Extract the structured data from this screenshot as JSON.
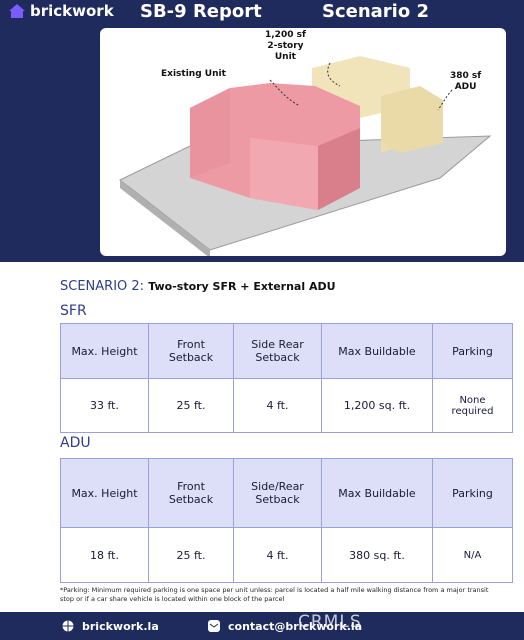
{
  "header": {
    "brand": "brickwork",
    "title": "SB-9 Report",
    "scenario": "Scenario 2"
  },
  "illustration": {
    "unit_label": [
      "1,200 sf",
      "2-story",
      "Unit"
    ],
    "existing_label": "Existing Unit",
    "adu_label": [
      "380 sf",
      "ADU"
    ]
  },
  "section": {
    "prefix": "SCENARIO 2:",
    "title": "Two-story SFR + External ADU"
  },
  "tables": [
    {
      "title": "SFR",
      "headers": [
        "Max. Height",
        "Front Setback",
        "Side Rear Setback",
        "Max Buildable",
        "Parking"
      ],
      "rows": [
        [
          "33 ft.",
          "25 ft.",
          "4 ft.",
          "1,200 sq. ft.",
          "None required"
        ]
      ]
    },
    {
      "title": "ADU",
      "headers": [
        "Max. Height",
        "Front Setback",
        "Side/Rear Setback",
        "Max Buildable",
        "Parking"
      ],
      "rows": [
        [
          "18 ft.",
          "25 ft.",
          "4 ft.",
          "380 sq. ft.",
          "N/A"
        ]
      ]
    }
  ],
  "footnote": "*Parking: Minimum required parking is one space per unit unless: parcel is located a half mile walking distance from a major transit stop or if a car share vehicle is located within one block of the parcel",
  "footer": {
    "website": "brickwork.la",
    "email": "contact@brickwork.la",
    "watermark": "CRMLS"
  }
}
